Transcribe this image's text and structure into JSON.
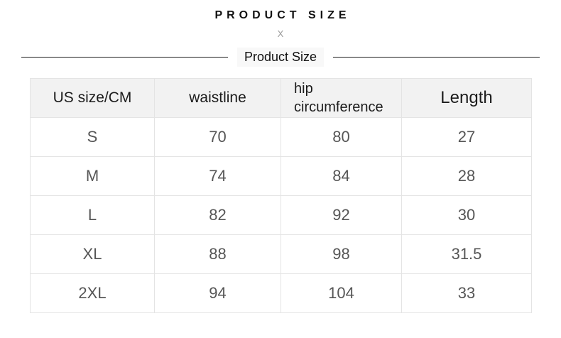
{
  "header": {
    "title": "PRODUCT SIZE",
    "separator": "X",
    "subtitle": "Product Size"
  },
  "colors": {
    "header_row_bg": "#f2f2f2",
    "table_border": "#e4e4e4",
    "header_text": "#1c1c1c",
    "cell_text": "#565656",
    "divider_line": "#1f1f1f",
    "separator_x": "#9b9b9b"
  },
  "chart_data": {
    "type": "table",
    "title": "PRODUCT SIZE",
    "subtitle": "Product Size",
    "units_note": "CM",
    "columns": [
      "US size/CM",
      "waistline",
      "hip circumference",
      "Length"
    ],
    "rows": [
      [
        "S",
        70,
        80,
        27
      ],
      [
        "M",
        74,
        84,
        28
      ],
      [
        "L",
        82,
        92,
        30
      ],
      [
        "XL",
        88,
        98,
        31.5
      ],
      [
        "2XL",
        94,
        104,
        33
      ]
    ]
  }
}
